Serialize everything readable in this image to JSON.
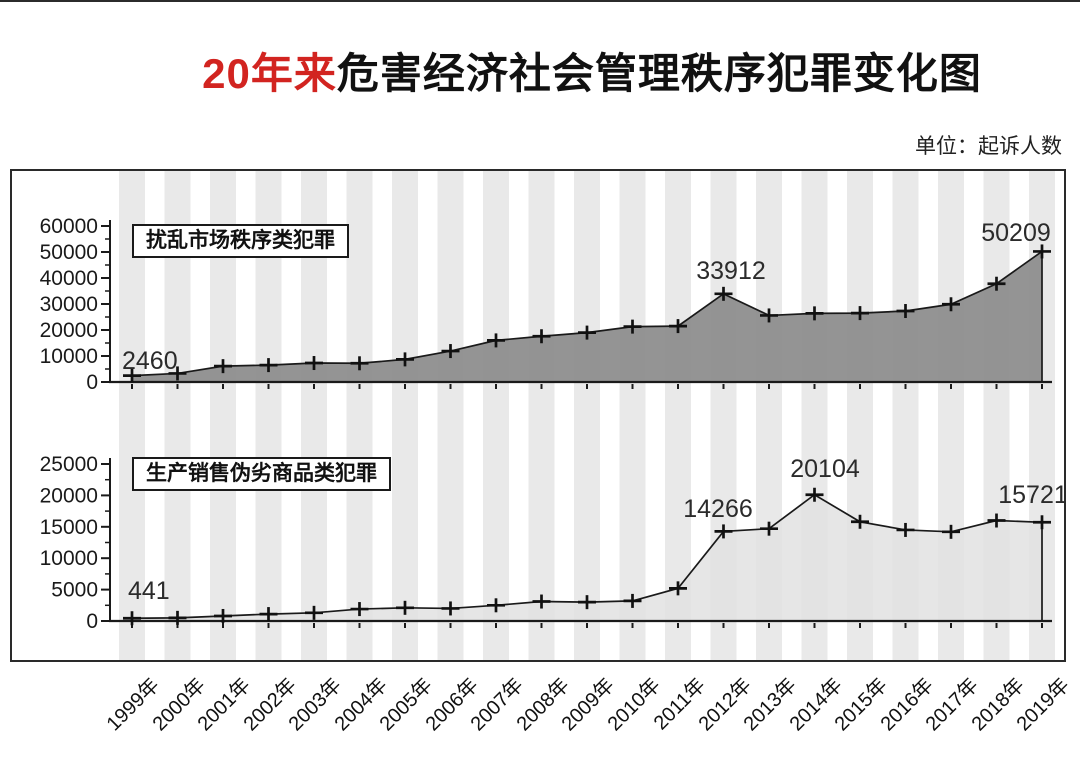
{
  "title": {
    "highlight": "20年来",
    "rest": "危害经济社会管理秩序犯罪变化图"
  },
  "unit_label": "单位：起诉人数",
  "colors": {
    "title_highlight": "#d22420",
    "top_area_fill": "#8d8d8d",
    "bottom_area_fill": "#e2e2e2",
    "stripe": "#e9e9e9",
    "line": "#1a1a1a"
  },
  "chart_data": [
    {
      "type": "area",
      "name": "扰乱市场秩序类犯罪",
      "categories": [
        "1999年",
        "2000年",
        "2001年",
        "2002年",
        "2003年",
        "2004年",
        "2005年",
        "2006年",
        "2007年",
        "2008年",
        "2009年",
        "2010年",
        "2011年",
        "2012年",
        "2013年",
        "2014年",
        "2015年",
        "2016年",
        "2017年",
        "2018年",
        "2019年"
      ],
      "values": [
        2460,
        3300,
        6100,
        6500,
        7300,
        7200,
        8700,
        11900,
        16000,
        17600,
        19000,
        21300,
        21500,
        33912,
        25600,
        26400,
        26500,
        27300,
        29900,
        37800,
        50209
      ],
      "ylim": [
        0,
        60000
      ],
      "ytick_step": 10000,
      "ytick_minor_step": 5000,
      "annotations": [
        {
          "year": "1999年",
          "label": "2460"
        },
        {
          "year": "2012年",
          "label": "33912"
        },
        {
          "year": "2019年",
          "label": "50209"
        }
      ]
    },
    {
      "type": "area",
      "name": "生产销售伪劣商品类犯罪",
      "categories": [
        "1999年",
        "2000年",
        "2001年",
        "2002年",
        "2003年",
        "2004年",
        "2005年",
        "2006年",
        "2007年",
        "2008年",
        "2009年",
        "2010年",
        "2011年",
        "2012年",
        "2013年",
        "2014年",
        "2015年",
        "2016年",
        "2017年",
        "2018年",
        "2019年"
      ],
      "values": [
        441,
        500,
        800,
        1100,
        1300,
        1900,
        2100,
        2000,
        2500,
        3100,
        3000,
        3200,
        5200,
        14266,
        14700,
        20104,
        15800,
        14500,
        14200,
        16000,
        15721
      ],
      "ylim": [
        0,
        25000
      ],
      "ytick_step": 5000,
      "ytick_minor_step": 2500,
      "annotations": [
        {
          "year": "1999年",
          "label": "441"
        },
        {
          "year": "2012年",
          "label": "14266"
        },
        {
          "year": "2014年",
          "label": "20104"
        },
        {
          "year": "2019年",
          "label": "15721"
        }
      ]
    }
  ]
}
